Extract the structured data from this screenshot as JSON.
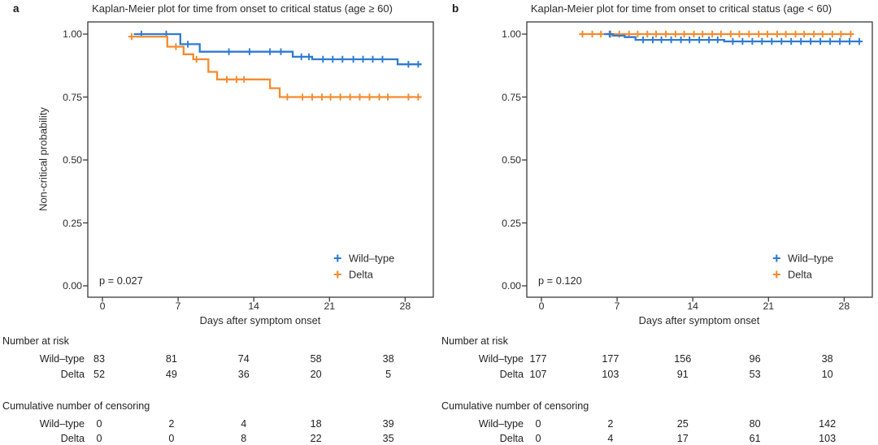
{
  "figure": {
    "background": "#ffffff",
    "axis_color": "#3a3a3a",
    "text_color": "#222222"
  },
  "panels_meta": {
    "risk_header": "Number at risk",
    "censor_header": "Cumulative number of censoring"
  },
  "chart_data": [
    {
      "type": "line",
      "subtype": "kaplan-meier-step",
      "panel_label": "a",
      "title": "Kaplan-Meier plot for time from onset to critical status (age ≥ 60)",
      "xlabel": "Days after symptom onset",
      "ylabel": "Non-critical probability",
      "p_value": "p = 0.027",
      "xlim": [
        -1.4,
        30.6
      ],
      "ylim": [
        0,
        1
      ],
      "grid": false,
      "legend_position": "inside-bottom-right",
      "xticks": [
        0,
        7,
        14,
        21,
        28
      ],
      "ytick_labels": [
        "1.00",
        "0.75",
        "0.50",
        "0.25",
        "0.00"
      ],
      "ytick_values": [
        1.0,
        0.75,
        0.5,
        0.25,
        0.0
      ],
      "legend": [
        {
          "label": "Wild–type",
          "color": "#2e7bd2"
        },
        {
          "label": "Delta",
          "color": "#f68a2e"
        }
      ],
      "series": [
        {
          "name": "Wild–type",
          "color": "#2e7bd2",
          "end_day": 29.5,
          "steps": [
            [
              2.9,
              1.0
            ],
            [
              7.2,
              0.96
            ],
            [
              9.0,
              0.93
            ],
            [
              17.6,
              0.91
            ],
            [
              19.4,
              0.9
            ],
            [
              27.3,
              0.88
            ]
          ],
          "censors": [
            [
              3.6,
              1.0
            ],
            [
              5.9,
              1.0
            ],
            [
              7.9,
              0.96
            ],
            [
              11.7,
              0.93
            ],
            [
              13.6,
              0.93
            ],
            [
              15.5,
              0.93
            ],
            [
              16.5,
              0.93
            ],
            [
              18.4,
              0.91
            ],
            [
              19.1,
              0.91
            ],
            [
              20.4,
              0.9
            ],
            [
              21.3,
              0.9
            ],
            [
              22.2,
              0.9
            ],
            [
              23.2,
              0.9
            ],
            [
              24.1,
              0.9
            ],
            [
              25.0,
              0.9
            ],
            [
              25.9,
              0.9
            ],
            [
              28.3,
              0.88
            ],
            [
              29.2,
              0.88
            ]
          ]
        },
        {
          "name": "Delta",
          "color": "#f68a2e",
          "end_day": 29.5,
          "steps": [
            [
              2.7,
              0.99
            ],
            [
              6.0,
              0.95
            ],
            [
              7.5,
              0.92
            ],
            [
              8.4,
              0.9
            ],
            [
              9.8,
              0.85
            ],
            [
              10.6,
              0.82
            ],
            [
              15.5,
              0.785
            ],
            [
              16.4,
              0.75
            ]
          ],
          "censors": [
            [
              2.7,
              0.99
            ],
            [
              6.8,
              0.95
            ],
            [
              8.7,
              0.9
            ],
            [
              11.5,
              0.82
            ],
            [
              12.4,
              0.82
            ],
            [
              13.1,
              0.82
            ],
            [
              17.1,
              0.75
            ],
            [
              18.5,
              0.75
            ],
            [
              19.4,
              0.75
            ],
            [
              20.3,
              0.75
            ],
            [
              21.1,
              0.75
            ],
            [
              22.0,
              0.75
            ],
            [
              22.9,
              0.75
            ],
            [
              23.8,
              0.75
            ],
            [
              24.7,
              0.75
            ],
            [
              25.6,
              0.75
            ],
            [
              26.4,
              0.75
            ],
            [
              28.3,
              0.75
            ],
            [
              29.2,
              0.75
            ]
          ]
        }
      ],
      "number_at_risk": {
        "rows": [
          {
            "label": "Wild–type",
            "values": [
              83,
              81,
              74,
              58,
              38
            ]
          },
          {
            "label": "Delta",
            "values": [
              52,
              49,
              36,
              20,
              5
            ]
          }
        ]
      },
      "cumulative_censoring": {
        "rows": [
          {
            "label": "Wild–type",
            "values": [
              0,
              2,
              4,
              18,
              39
            ]
          },
          {
            "label": "Delta",
            "values": [
              0,
              0,
              8,
              22,
              35
            ]
          }
        ]
      }
    },
    {
      "type": "line",
      "subtype": "kaplan-meier-step",
      "panel_label": "b",
      "title": "Kaplan-Meier plot for time from onset to critical status (age < 60)",
      "xlabel": "Days after symptom onset",
      "ylabel": "Non-critical probability",
      "p_value": "p = 0.120",
      "xlim": [
        -1.4,
        30.6
      ],
      "ylim": [
        0,
        1
      ],
      "grid": false,
      "legend_position": "inside-bottom-right",
      "xticks": [
        0,
        7,
        14,
        21,
        28
      ],
      "ytick_labels": [
        "1.00",
        "0.75",
        "0.50",
        "0.25",
        "0.00"
      ],
      "ytick_values": [
        1.0,
        0.75,
        0.5,
        0.25,
        0.0
      ],
      "legend": [
        {
          "label": "Wild–type",
          "color": "#2e7bd2"
        },
        {
          "label": "Delta",
          "color": "#f68a2e"
        }
      ],
      "series": [
        {
          "name": "Delta",
          "color": "#f68a2e",
          "end_day": 28.7,
          "steps": [
            [
              3.6,
              1.0
            ]
          ],
          "censors": [
            [
              3.8,
              1.0
            ],
            [
              4.7,
              1.0
            ],
            [
              5.5,
              1.0
            ],
            [
              6.4,
              1.0
            ],
            [
              7.2,
              1.0
            ],
            [
              8.1,
              1.0
            ],
            [
              8.9,
              1.0
            ],
            [
              9.8,
              1.0
            ],
            [
              10.6,
              1.0
            ],
            [
              11.5,
              1.0
            ],
            [
              12.4,
              1.0
            ],
            [
              13.2,
              1.0
            ],
            [
              14.1,
              1.0
            ],
            [
              14.9,
              1.0
            ],
            [
              15.8,
              1.0
            ],
            [
              16.6,
              1.0
            ],
            [
              17.5,
              1.0
            ],
            [
              18.3,
              1.0
            ],
            [
              19.2,
              1.0
            ],
            [
              20.1,
              1.0
            ],
            [
              20.9,
              1.0
            ],
            [
              21.8,
              1.0
            ],
            [
              22.6,
              1.0
            ],
            [
              23.5,
              1.0
            ],
            [
              24.3,
              1.0
            ],
            [
              25.2,
              1.0
            ],
            [
              26.0,
              1.0
            ],
            [
              26.9,
              1.0
            ],
            [
              27.7,
              1.0
            ],
            [
              28.6,
              1.0
            ]
          ]
        },
        {
          "name": "Wild–type",
          "color": "#2e7bd2",
          "end_day": 29.5,
          "steps": [
            [
              5.8,
              1.0
            ],
            [
              6.6,
              0.994
            ],
            [
              7.7,
              0.988
            ],
            [
              8.7,
              0.977
            ],
            [
              16.9,
              0.971
            ]
          ],
          "censors": [
            [
              6.3,
              1.0
            ],
            [
              9.4,
              0.977
            ],
            [
              10.3,
              0.977
            ],
            [
              11.1,
              0.977
            ],
            [
              12.0,
              0.977
            ],
            [
              12.9,
              0.977
            ],
            [
              13.7,
              0.977
            ],
            [
              14.6,
              0.977
            ],
            [
              15.5,
              0.977
            ],
            [
              16.3,
              0.977
            ],
            [
              17.7,
              0.971
            ],
            [
              18.6,
              0.971
            ],
            [
              19.5,
              0.971
            ],
            [
              20.4,
              0.971
            ],
            [
              21.3,
              0.971
            ],
            [
              22.2,
              0.971
            ],
            [
              23.1,
              0.971
            ],
            [
              24.0,
              0.971
            ],
            [
              24.9,
              0.971
            ],
            [
              25.8,
              0.971
            ],
            [
              26.7,
              0.971
            ],
            [
              27.6,
              0.971
            ],
            [
              28.5,
              0.971
            ],
            [
              29.4,
              0.971
            ]
          ]
        }
      ],
      "number_at_risk": {
        "rows": [
          {
            "label": "Wild–type",
            "values": [
              177,
              177,
              156,
              96,
              38
            ]
          },
          {
            "label": "Delta",
            "values": [
              107,
              103,
              91,
              53,
              10
            ]
          }
        ]
      },
      "cumulative_censoring": {
        "rows": [
          {
            "label": "Wild–type",
            "values": [
              0,
              2,
              25,
              80,
              142
            ]
          },
          {
            "label": "Delta",
            "values": [
              0,
              4,
              17,
              61,
              103
            ]
          }
        ]
      }
    }
  ]
}
